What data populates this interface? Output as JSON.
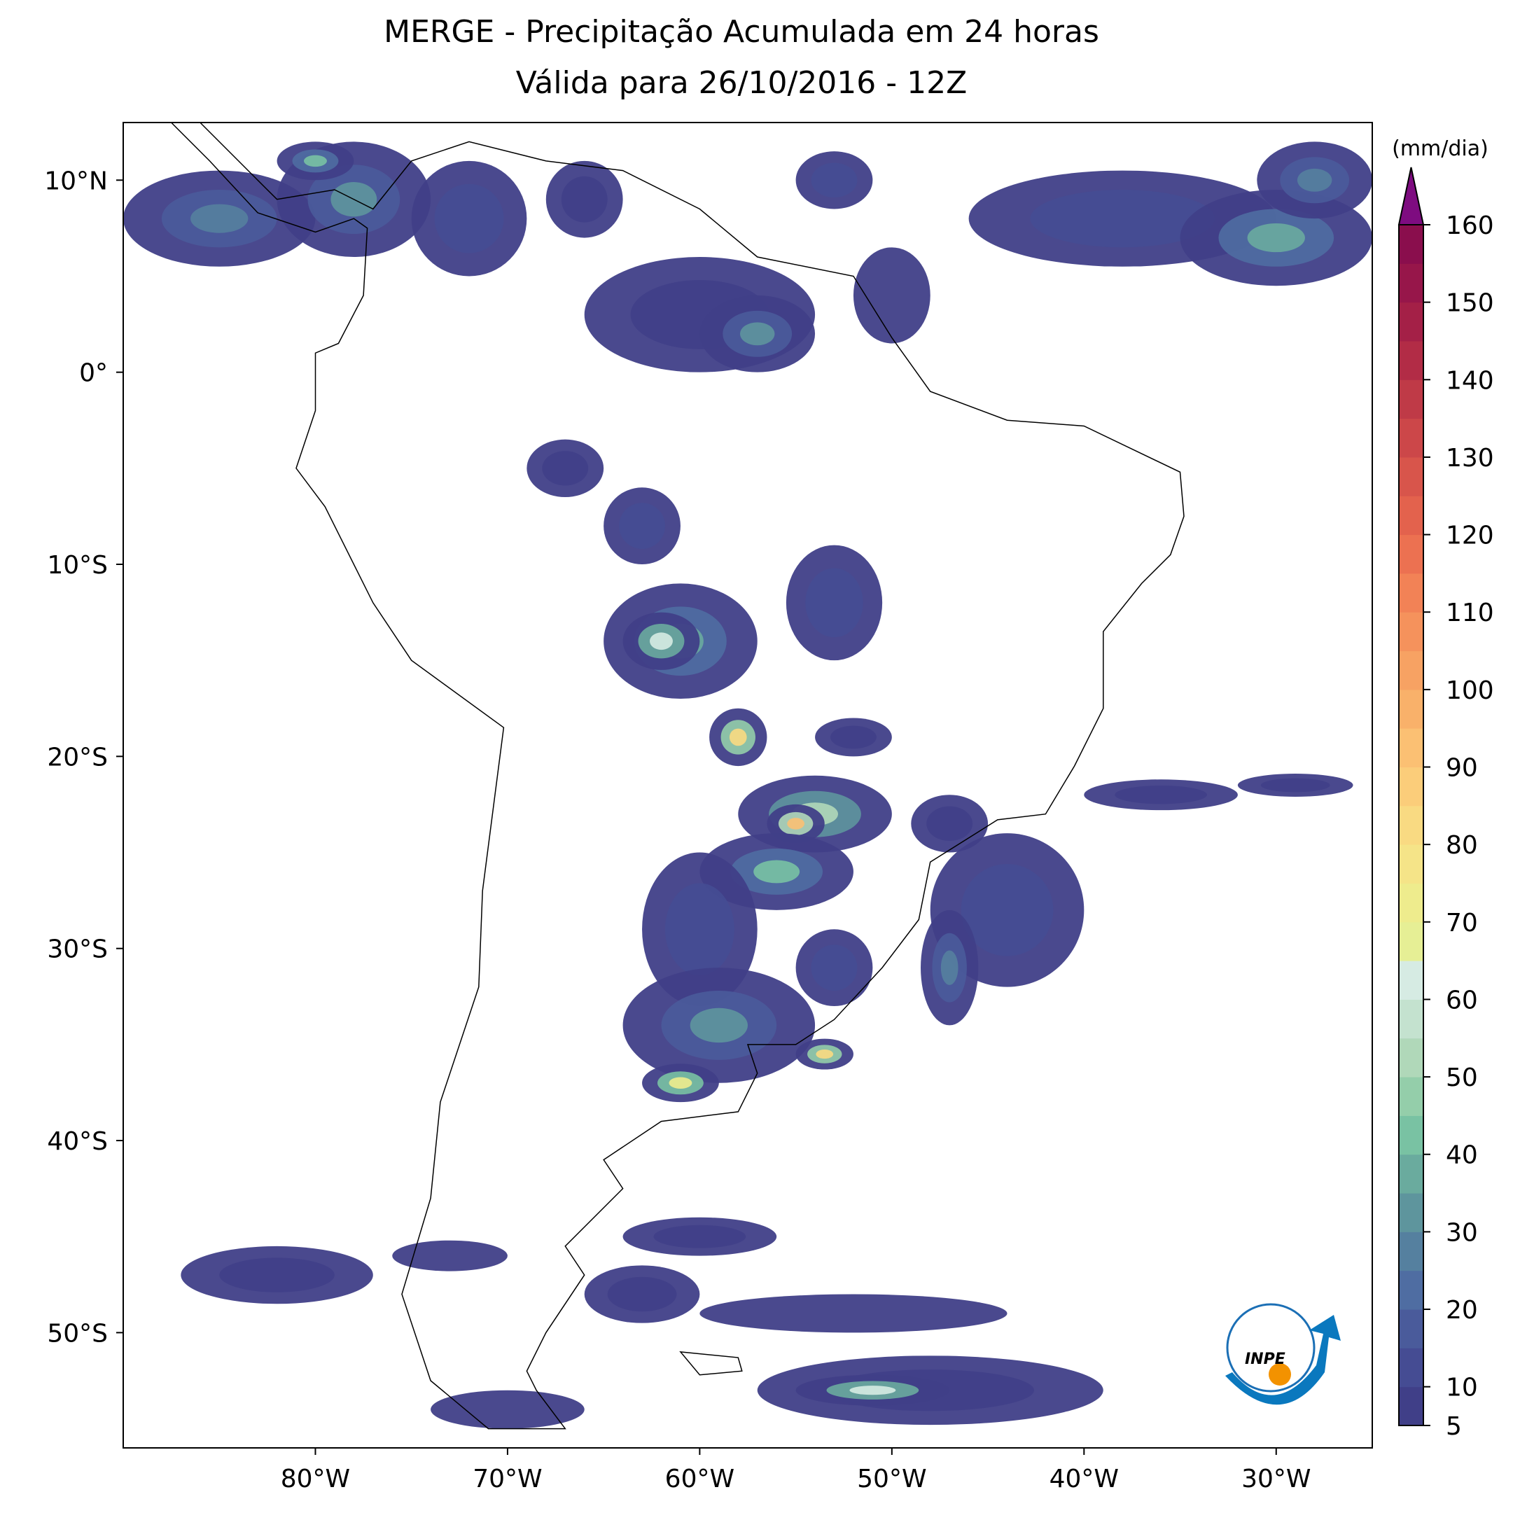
{
  "header": {
    "title": "MERGE - Precipitação Acumulada em 24 horas",
    "subtitle": "Válida para 26/10/2016 - 12Z"
  },
  "map": {
    "xlim": [
      -90,
      -25
    ],
    "ylim": [
      -56,
      13
    ],
    "xticks": [
      {
        "value": -80,
        "label": "80°W"
      },
      {
        "value": -70,
        "label": "70°W"
      },
      {
        "value": -60,
        "label": "60°W"
      },
      {
        "value": -50,
        "label": "50°W"
      },
      {
        "value": -40,
        "label": "40°W"
      },
      {
        "value": -30,
        "label": "30°W"
      }
    ],
    "yticks": [
      {
        "value": 10,
        "label": "10°N"
      },
      {
        "value": 0,
        "label": "0°"
      },
      {
        "value": -10,
        "label": "10°S"
      },
      {
        "value": -20,
        "label": "20°S"
      },
      {
        "value": -30,
        "label": "30°S"
      },
      {
        "value": -40,
        "label": "40°S"
      },
      {
        "value": -50,
        "label": "50°S"
      }
    ]
  },
  "colorbar": {
    "label": "(mm/dia)",
    "lim": [
      5,
      160
    ],
    "ticks": [
      5,
      10,
      20,
      30,
      40,
      50,
      60,
      70,
      80,
      90,
      100,
      110,
      120,
      130,
      140,
      150,
      160
    ],
    "step": 5,
    "colors": [
      "#403f88",
      "#454c93",
      "#4a5b9b",
      "#4f6da2",
      "#55809f",
      "#5e959d",
      "#6aab9e",
      "#79c2a3",
      "#94ceaa",
      "#b0d8b9",
      "#c4e2cf",
      "#d6ebe3",
      "#e6ef95",
      "#eeec8d",
      "#f5e488",
      "#f9da82",
      "#fbcd7a",
      "#fbc073",
      "#f9b16a",
      "#f7a263",
      "#f5925c",
      "#f28256",
      "#ec7151",
      "#e3624d",
      "#d8554b",
      "#cc4749",
      "#bf3a47",
      "#b22c46",
      "#a42047",
      "#97164a",
      "#8a0e4d"
    ],
    "extend_color": "#7e0c80"
  },
  "logo": {
    "text": "INPE"
  }
}
